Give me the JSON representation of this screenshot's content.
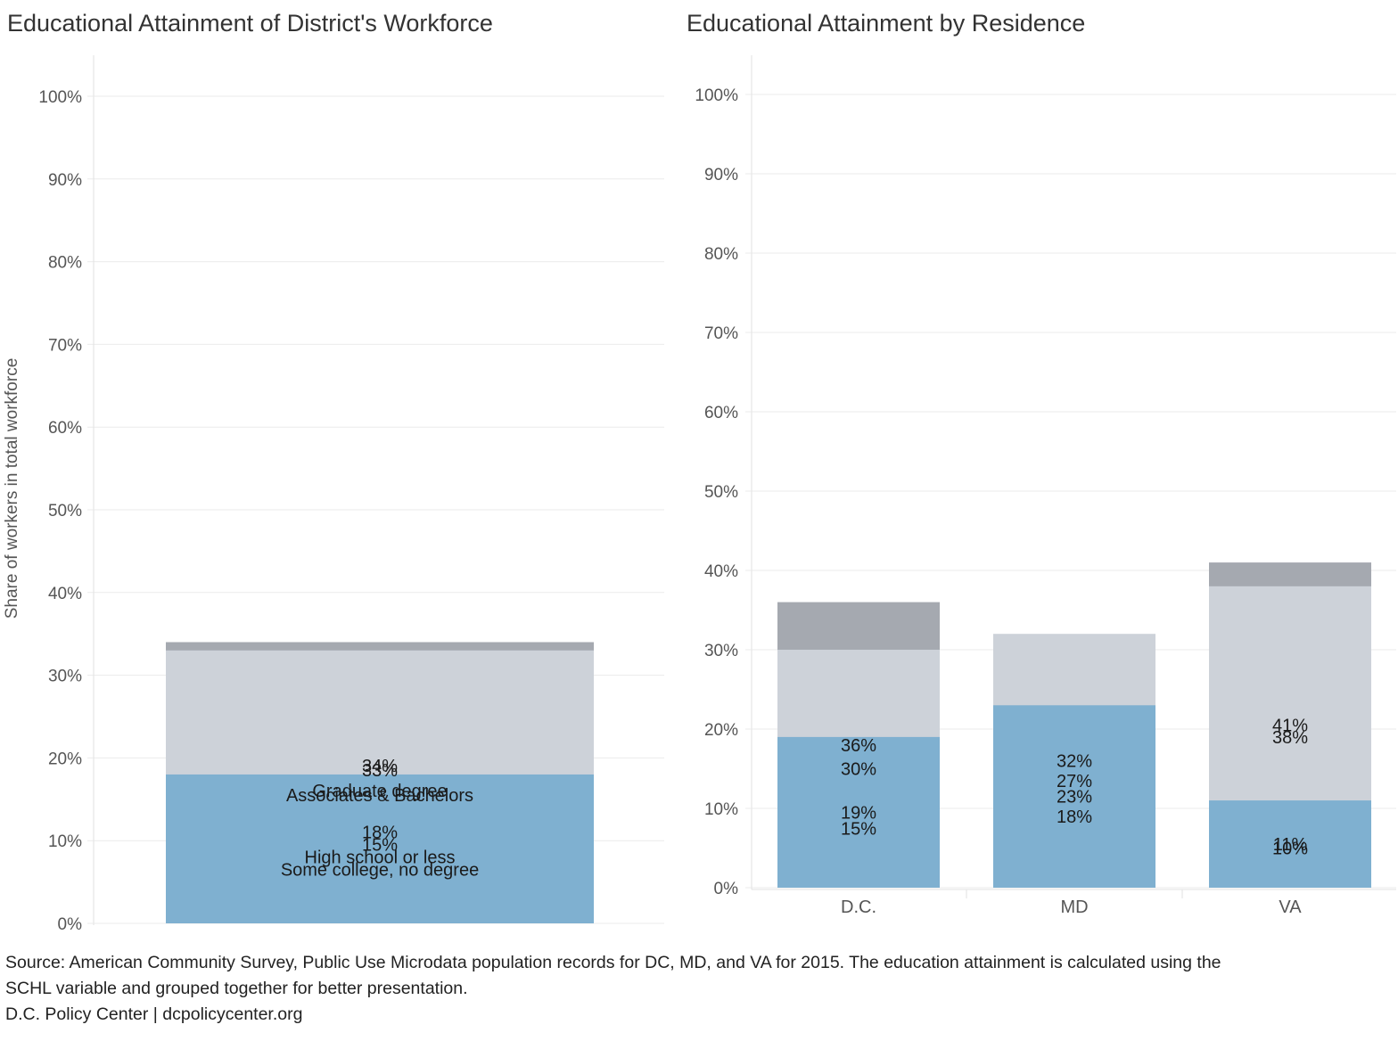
{
  "colors": {
    "high_school": "#7fb0d0",
    "some_college": "#fcb87d",
    "assoc_bach": "#cdd2d9",
    "graduate": "#a5a9b0"
  },
  "chart_data": [
    {
      "type": "bar",
      "stacked": true,
      "title": "Educational Attainment of District's Workforce",
      "ylabel": "Share of workers in total workforce",
      "ylim": [
        0,
        100
      ],
      "yticks": [
        "0%",
        "10%",
        "20%",
        "30%",
        "40%",
        "50%",
        "60%",
        "70%",
        "80%",
        "90%",
        "100%"
      ],
      "grid": true,
      "categories": [
        ""
      ],
      "series": [
        {
          "name": "Graduate degree",
          "key": "graduate",
          "values": [
            34
          ],
          "labels": [
            "34%"
          ]
        },
        {
          "name": "Associates & Bachelors",
          "key": "assoc_bach",
          "values": [
            33
          ],
          "labels": [
            "33%"
          ]
        },
        {
          "name": "Some college, no degree",
          "key": "some_college",
          "values": [
            15
          ],
          "labels": [
            "15%"
          ]
        },
        {
          "name": "High school or less",
          "key": "high_school",
          "values": [
            18
          ],
          "labels": [
            "18%"
          ]
        }
      ]
    },
    {
      "type": "bar",
      "stacked": true,
      "title": "Educational Attainment by Residence",
      "ylabel": "",
      "ylim": [
        0,
        100
      ],
      "yticks": [
        "0%",
        "10%",
        "20%",
        "30%",
        "40%",
        "50%",
        "60%",
        "70%",
        "80%",
        "90%",
        "100%"
      ],
      "grid": true,
      "categories": [
        "D.C.",
        "MD",
        "VA"
      ],
      "series": [
        {
          "key": "graduate",
          "values": [
            36,
            27,
            41
          ],
          "labels": [
            "36%",
            "27%",
            "41%"
          ]
        },
        {
          "key": "assoc_bach",
          "values": [
            30,
            32,
            38
          ],
          "labels": [
            "30%",
            "32%",
            "38%"
          ]
        },
        {
          "key": "some_college",
          "values": [
            15,
            18,
            10
          ],
          "labels": [
            "15%",
            "18%",
            "10%"
          ]
        },
        {
          "key": "high_school",
          "values": [
            19,
            23,
            11
          ],
          "labels": [
            "19%",
            "23%",
            "11%"
          ]
        }
      ]
    }
  ],
  "footer": {
    "source_line1": "Source: American Community Survey, Public Use Microdata population records for DC, MD, and VA for 2015. The education attainment is calculated using the",
    "source_line2": "SCHL variable and grouped together for better presentation.",
    "credit": "D.C. Policy Center | dcpolicycenter.org"
  }
}
